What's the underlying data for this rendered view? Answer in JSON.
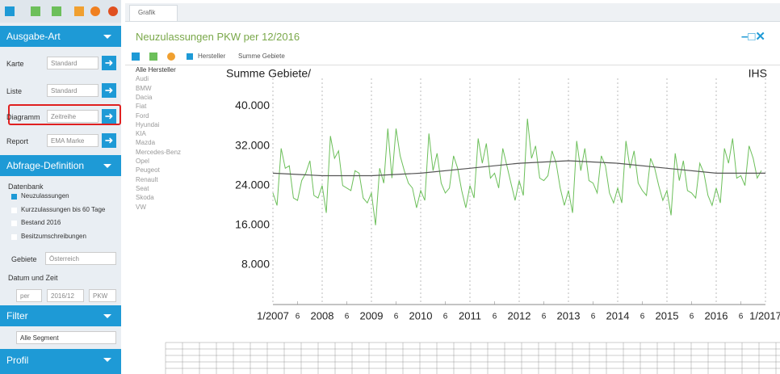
{
  "tab": "Grafik",
  "title": "Neuzulassungen PKW per 12/2016",
  "sidebar": {
    "ausgabe_art": "Ausgabe-Art",
    "rows": [
      {
        "label": "Karte",
        "value": "Standard"
      },
      {
        "label": "Liste",
        "value": "Standard"
      },
      {
        "label": "Diagramm",
        "value": "Zeitreihe"
      },
      {
        "label": "Report",
        "value": "EMA Marke"
      }
    ],
    "abfrage": "Abfrage-Definition",
    "datenbank": "Datenbank",
    "datenbank_options": [
      "Neuzulassungen",
      "Kurzzulassungen bis 60 Tage",
      "Bestand 2016",
      "Besitzumschreibungen"
    ],
    "gebiete_label": "Gebiete",
    "gebiete_value": "Österreich",
    "datum_label": "Datum und Zeit",
    "datum_values": [
      "per",
      "2016/12",
      "PKW"
    ],
    "filter": "Filter",
    "segment": "Alle Segment",
    "profil": "Profil"
  },
  "toolbar": {
    "hersteller": "Hersteller",
    "gebiete": "Summe Gebiete"
  },
  "manufacturers": [
    "Alle Hersteller",
    "Audi",
    "BMW",
    "Dacia",
    "Fiat",
    "Ford",
    "Hyundai",
    "KIA",
    "Mazda",
    "Mercedes-Benz",
    "Opel",
    "Peugeot",
    "Renault",
    "Seat",
    "Skoda",
    "VW"
  ],
  "chart_data": {
    "type": "line",
    "title": "Summe Gebiete/",
    "source": "IHS",
    "xlim": [
      0,
      120
    ],
    "xticks": [
      {
        "value": 0,
        "label": "1/2007"
      },
      {
        "value": 6,
        "label": "6"
      },
      {
        "value": 12,
        "label": "2008"
      },
      {
        "value": 18,
        "label": "6"
      },
      {
        "value": 24,
        "label": "2009"
      },
      {
        "value": 30,
        "label": "6"
      },
      {
        "value": 36,
        "label": "2010"
      },
      {
        "value": 42,
        "label": "6"
      },
      {
        "value": 48,
        "label": "2011"
      },
      {
        "value": 54,
        "label": "6"
      },
      {
        "value": 60,
        "label": "2012"
      },
      {
        "value": 66,
        "label": "6"
      },
      {
        "value": 72,
        "label": "2013"
      },
      {
        "value": 78,
        "label": "6"
      },
      {
        "value": 84,
        "label": "2014"
      },
      {
        "value": 90,
        "label": "6"
      },
      {
        "value": 96,
        "label": "2015"
      },
      {
        "value": 102,
        "label": "6"
      },
      {
        "value": 108,
        "label": "2016"
      },
      {
        "value": 114,
        "label": "6"
      },
      {
        "value": 120,
        "label": "1/2017"
      }
    ],
    "ylim": [
      0,
      44000
    ],
    "yticks": [
      {
        "value": 8000,
        "label": "8.000"
      },
      {
        "value": 16000,
        "label": "16.000"
      },
      {
        "value": 24000,
        "label": "24.000"
      },
      {
        "value": 32000,
        "label": "32.000"
      },
      {
        "value": 40000,
        "label": "40.000"
      }
    ],
    "series": [
      {
        "color": "#6cbf5a",
        "x": [
          0,
          1,
          2,
          3,
          4,
          5,
          6,
          7,
          8,
          9,
          10,
          11,
          12,
          13,
          14,
          15,
          16,
          17,
          18,
          19,
          20,
          21,
          22,
          23,
          24,
          25,
          26,
          27,
          28,
          29,
          30,
          31,
          32,
          33,
          34,
          35,
          36,
          37,
          38,
          39,
          40,
          41,
          42,
          43,
          44,
          45,
          46,
          47,
          48,
          49,
          50,
          51,
          52,
          53,
          54,
          55,
          56,
          57,
          58,
          59,
          60,
          61,
          62,
          63,
          64,
          65,
          66,
          67,
          68,
          69,
          70,
          71,
          72,
          73,
          74,
          75,
          76,
          77,
          78,
          79,
          80,
          81,
          82,
          83,
          84,
          85,
          86,
          87,
          88,
          89,
          90,
          91,
          92,
          93,
          94,
          95,
          96,
          97,
          98,
          99,
          100,
          101,
          102,
          103,
          104,
          105,
          106,
          107,
          108,
          109,
          110,
          111,
          112,
          113,
          114,
          115,
          116,
          117,
          118,
          119
        ],
        "values": [
          22500,
          20000,
          31500,
          27500,
          28000,
          21500,
          21000,
          25000,
          26500,
          29000,
          22000,
          21500,
          24000,
          18500,
          34000,
          29500,
          31000,
          24000,
          23500,
          23000,
          27000,
          26500,
          21500,
          20500,
          22500,
          16000,
          27500,
          24500,
          35500,
          25500,
          35500,
          30000,
          27000,
          24500,
          23500,
          19500,
          23000,
          21000,
          34500,
          27000,
          30500,
          24500,
          22500,
          23500,
          30000,
          27500,
          23000,
          19500,
          24000,
          21500,
          33500,
          28500,
          32500,
          25500,
          26500,
          23500,
          31500,
          28000,
          24500,
          21000,
          25000,
          22000,
          37500,
          29500,
          32000,
          25500,
          25000,
          26000,
          31000,
          28500,
          23500,
          20000,
          23000,
          18500,
          33000,
          27000,
          31500,
          25000,
          24500,
          22500,
          30000,
          28000,
          22500,
          20500,
          23500,
          20500,
          33000,
          27500,
          31000,
          24500,
          23000,
          22000,
          29500,
          27500,
          24000,
          21000,
          23000,
          18000,
          30500,
          25000,
          29000,
          23000,
          22500,
          21500,
          28500,
          26500,
          22000,
          20000,
          23500,
          20500,
          31500,
          28500,
          33500,
          25500,
          26000,
          24000,
          32000,
          29500,
          25500,
          27000
        ]
      },
      {
        "color": "#555555",
        "x": [
          0,
          12,
          24,
          36,
          48,
          60,
          72,
          84,
          96,
          108,
          120
        ],
        "values": [
          26500,
          26000,
          26000,
          26500,
          27500,
          28500,
          29000,
          28500,
          27500,
          26500,
          26500
        ]
      }
    ]
  }
}
